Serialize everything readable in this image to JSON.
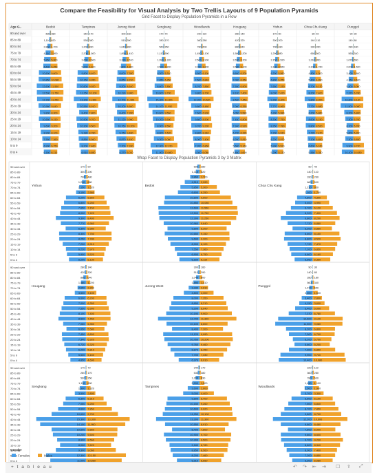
{
  "title": "Compare the Feasibility for Visual Analysis by Two Trellis Layouts of 9 Population Pyramids",
  "grid_subtitle": "Grid Facet to Display Population Pyramids in a Row",
  "wrap_subtitle": "Wrap Facet to Display Population Pyramids 3 by 3 Matrix",
  "age_header": "Age G..",
  "legend": {
    "title": "Gender",
    "items": [
      {
        "label": "Females",
        "color": "#4a9fe8"
      },
      {
        "label": "Males",
        "color": "#f0a22b"
      }
    ]
  },
  "footer": {
    "logo": "+ t a b l e a u",
    "controls": [
      "↶",
      "↷",
      "⇤",
      "⇥",
      "☐",
      "⇪",
      "⤢"
    ]
  },
  "colors": {
    "female": "#4a9fe8",
    "male": "#f0a22b",
    "border": "#e08a2a"
  },
  "chart_data": {
    "type": "bar",
    "age_groups": [
      "90 and over",
      "85 to 89",
      "80 to 84",
      "75 to 79",
      "70 to 74",
      "65 to 69",
      "60 to 64",
      "55 to 59",
      "50 to 54",
      "45 to 49",
      "40 to 44",
      "35 to 39",
      "30 to 34",
      "25 to 29",
      "20 to 24",
      "15 to 19",
      "10 to 14",
      "5 to 9",
      "0 to 4"
    ],
    "towns": [
      {
        "name": "Bedok",
        "female": [
          690,
          1110,
          2860,
          4510,
          5850,
          6600,
          10600,
          10850,
          12600,
          12500,
          12300,
          10960,
          9800,
          10650,
          9690,
          8900,
          7550,
          6900,
          6160
        ],
        "male": [
          380,
          620,
          1700,
          2990,
          5300,
          6250,
          9600,
          10080,
          11550,
          11750,
          11250,
          9640,
          8300,
          9150,
          9200,
          8100,
          7360,
          6750,
          6110
        ]
      },
      {
        "name": "Tampines",
        "female": [
          340,
          530,
          1200,
          2200,
          3600,
          5000,
          9800,
          10150,
          10600,
          11250,
          13300,
          10550,
          8400,
          10900,
          10300,
          9180,
          8850,
          8200,
          6910
        ],
        "male": [
          170,
          380,
          830,
          1500,
          2600,
          4400,
          8400,
          9260,
          9920,
          10100,
          11300,
          8910,
          7800,
          9700,
          9500,
          8780,
          8560,
          7460,
          6650
        ]
      },
      {
        "name": "Jurong West",
        "female": [
          300,
          510,
          1040,
          1890,
          3330,
          4800,
          8000,
          8650,
          9200,
          10190,
          12700,
          10100,
          8400,
          11120,
          10760,
          9760,
          8870,
          7700,
          6370
        ],
        "male": [
          160,
          390,
          800,
          1410,
          2610,
          4300,
          7350,
          8210,
          8640,
          9900,
          11300,
          8600,
          7200,
          9990,
          10200,
          9460,
          8450,
          7330,
          6010
        ]
      },
      {
        "name": "Sengkang",
        "female": [
          170,
          280,
          560,
          1110,
          1990,
          3500,
          6300,
          7050,
          8600,
          10600,
          15300,
          14100,
          10600,
          10200,
          8900,
          8000,
          9300,
          12300,
          11000
        ],
        "male": [
          70,
          170,
          350,
          690,
          1320,
          2800,
          5310,
          6250,
          7850,
          9700,
          13300,
          11950,
          9560,
          9500,
          8560,
          7620,
          9060,
          12150,
          10860
        ]
      },
      {
        "name": "Woodlands",
        "female": [
          220,
          360,
          780,
          1450,
          2500,
          3700,
          6500,
          7500,
          8700,
          9800,
          12200,
          9800,
          7600,
          9800,
          9700,
          8800,
          8000,
          7200,
          6300
        ],
        "male": [
          110,
          280,
          600,
          1100,
          1900,
          3300,
          6100,
          6840,
          7850,
          8700,
          10600,
          8480,
          6900,
          8500,
          9230,
          8340,
          7400,
          6850,
          6080
        ]
      },
      {
        "name": "Hougang",
        "female": [
          280,
          420,
          880,
          1580,
          2650,
          3500,
          6600,
          7000,
          7550,
          8100,
          8500,
          7060,
          6050,
          7450,
          7340,
          6720,
          6200,
          5500,
          4850
        ],
        "male": [
          140,
          320,
          640,
          1200,
          2200,
          3100,
          6200,
          6350,
          6900,
          7400,
          7450,
          6350,
          5580,
          6800,
          6920,
          6320,
          5810,
          5160,
          4690
        ]
      },
      {
        "name": "Yishun",
        "female": [
          170,
          300,
          700,
          1290,
          2150,
          3100,
          6200,
          6800,
          7650,
          8000,
          9300,
          7770,
          6300,
          8300,
          8250,
          7200,
          6220,
          5900,
          5290
        ],
        "male": [
          90,
          200,
          480,
          880,
          1520,
          2560,
          5560,
          6250,
          7150,
          7420,
          8400,
          6960,
          5980,
          7750,
          7780,
          6910,
          5970,
          5520,
          5130
        ]
      },
      {
        "name": "Choa Chu Kang",
        "female": [
          80,
          140,
          330,
          660,
          1210,
          2100,
          4800,
          5400,
          6700,
          8200,
          9800,
          7720,
          6200,
          8600,
          8800,
          7720,
          7100,
          6600,
          5560
        ],
        "male": [
          40,
          110,
          260,
          500,
          950,
          1760,
          4300,
          4990,
          6120,
          7400,
          8200,
          6880,
          5860,
          8150,
          8520,
          7470,
          6850,
          6160,
          5350
        ]
      },
      {
        "name": "Punggol",
        "female": [
          90,
          140,
          280,
          560,
          1070,
          2000,
          3400,
          4150,
          5400,
          7370,
          10600,
          11500,
          8200,
          7300,
          6100,
          5600,
          7300,
          9900,
          10400
        ],
        "male": [
          30,
          80,
          180,
          340,
          650,
          1500,
          2800,
          3600,
          5000,
          6780,
          9140,
          9080,
          6800,
          6700,
          5700,
          5200,
          6850,
          9720,
          10080
        ]
      }
    ],
    "series": [
      {
        "name": "Females"
      },
      {
        "name": "Males"
      }
    ]
  }
}
